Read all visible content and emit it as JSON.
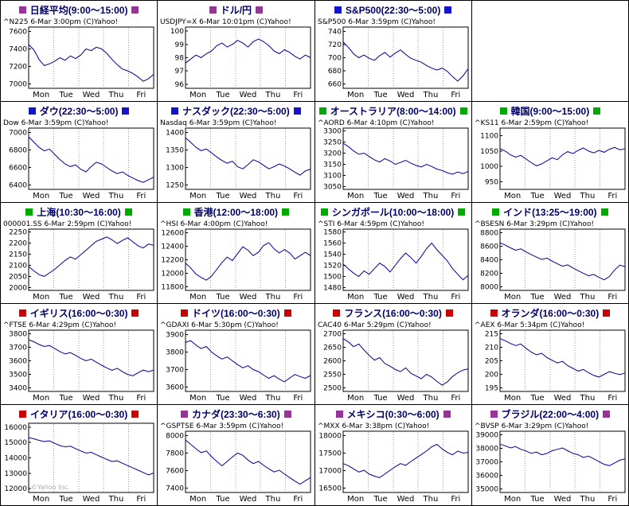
{
  "x_labels": [
    "Mon",
    "Tue",
    "Wed",
    "Thu",
    "Fri"
  ],
  "watermark": "©Yahoo Inc.",
  "colors": {
    "purple": "#993399",
    "blue": "#1414CC",
    "green": "#00AA00",
    "red": "#CC0000",
    "line": "#000099",
    "title": "#000066",
    "grid": "#999999"
  },
  "chart_data": [
    {
      "id": "n225",
      "type": "line",
      "title": "日経平均(9:00〜15:00)",
      "marker": "purple",
      "caption": "^N225 6-Mar 3:00pm (C)Yahoo!",
      "yticks": [
        7000,
        7200,
        7400,
        7600
      ],
      "ylim": [
        6950,
        7650
      ],
      "values": [
        7450,
        7390,
        7280,
        7210,
        7230,
        7260,
        7300,
        7270,
        7320,
        7290,
        7330,
        7400,
        7380,
        7420,
        7400,
        7350,
        7280,
        7220,
        7170,
        7150,
        7120,
        7080,
        7030,
        7060,
        7110
      ]
    },
    {
      "id": "usdjpy",
      "type": "line",
      "title": "ドル/円",
      "marker": "purple",
      "caption": "USDJPY=X 6-Mar 10:01pm (C)Yahoo!",
      "yticks": [
        96,
        97,
        98,
        99,
        100
      ],
      "ylim": [
        95.7,
        100.3
      ],
      "values": [
        97.6,
        97.9,
        98.2,
        98.0,
        98.3,
        98.5,
        98.9,
        99.1,
        98.8,
        99.0,
        99.3,
        99.1,
        98.8,
        99.2,
        99.4,
        99.2,
        98.9,
        98.5,
        98.3,
        98.6,
        98.4,
        98.1,
        97.9,
        98.2,
        98.0
      ]
    },
    {
      "id": "sp500",
      "type": "line",
      "title": "S&P500(22:30〜5:00)",
      "marker": "blue",
      "caption": "S&P500 6-Mar 3:59pm (C)Yahoo!",
      "yticks": [
        660,
        680,
        700,
        720,
        740
      ],
      "ylim": [
        653,
        747
      ],
      "values": [
        724,
        716,
        706,
        700,
        704,
        699,
        696,
        703,
        708,
        701,
        707,
        712,
        705,
        699,
        696,
        693,
        688,
        684,
        681,
        684,
        679,
        671,
        664,
        672,
        683
      ]
    },
    {
      "id": "empty",
      "empty": true
    },
    {
      "id": "dow",
      "type": "line",
      "title": "ダウ(22:30〜5:00)",
      "marker": "blue",
      "caption": "Dow 6-Mar 3:59pm (C)Yahoo!",
      "yticks": [
        6400,
        6600,
        6800,
        7000
      ],
      "ylim": [
        6350,
        7050
      ],
      "values": [
        6950,
        6890,
        6830,
        6790,
        6810,
        6750,
        6690,
        6640,
        6610,
        6630,
        6580,
        6550,
        6610,
        6660,
        6640,
        6600,
        6560,
        6530,
        6550,
        6510,
        6480,
        6450,
        6430,
        6460,
        6490
      ]
    },
    {
      "id": "nasdaq",
      "type": "line",
      "title": "ナスダック(22:30〜5:00)",
      "marker": "blue",
      "caption": "Nasdaq 6-Mar 3:59pm (C)Yahoo!",
      "yticks": [
        1250,
        1300,
        1350,
        1400
      ],
      "ylim": [
        1237,
        1413
      ],
      "values": [
        1385,
        1372,
        1358,
        1348,
        1353,
        1342,
        1330,
        1320,
        1312,
        1318,
        1302,
        1296,
        1308,
        1322,
        1316,
        1306,
        1296,
        1302,
        1310,
        1304,
        1296,
        1286,
        1278,
        1290,
        1295
      ]
    },
    {
      "id": "aord",
      "type": "line",
      "title": "オーストラリア(8:00〜14:00)",
      "marker": "green",
      "caption": "^AORD 6-Mar 4:10pm (C)Yahoo!",
      "yticks": [
        3050,
        3100,
        3150,
        3200,
        3250,
        3300
      ],
      "ylim": [
        3037,
        3313
      ],
      "values": [
        3245,
        3230,
        3210,
        3195,
        3200,
        3185,
        3170,
        3160,
        3175,
        3165,
        3150,
        3158,
        3168,
        3155,
        3145,
        3138,
        3150,
        3140,
        3128,
        3122,
        3112,
        3105,
        3115,
        3108,
        3118
      ]
    },
    {
      "id": "ks11",
      "type": "line",
      "title": "韓国(9:00〜15:00)",
      "marker": "green",
      "caption": "^KS11 6-Mar 2:59pm (C)Yahoo!",
      "yticks": [
        950,
        1000,
        1050,
        1100
      ],
      "ylim": [
        925,
        1125
      ],
      "values": [
        1058,
        1050,
        1038,
        1030,
        1036,
        1024,
        1012,
        1002,
        1008,
        1018,
        1028,
        1022,
        1038,
        1048,
        1042,
        1052,
        1060,
        1050,
        1044,
        1052,
        1046,
        1056,
        1062,
        1054,
        1058
      ]
    },
    {
      "id": "shanghai",
      "type": "line",
      "title": "上海(10:30〜16:00)",
      "marker": "green",
      "caption": "000001.SS 6-Mar 2:59pm (C)Yahoo!",
      "yticks": [
        2000,
        2050,
        2100,
        2150,
        2200,
        2250
      ],
      "ylim": [
        1987,
        2263
      ],
      "values": [
        2095,
        2075,
        2058,
        2050,
        2066,
        2082,
        2102,
        2122,
        2138,
        2128,
        2148,
        2168,
        2188,
        2208,
        2218,
        2228,
        2215,
        2198,
        2212,
        2224,
        2206,
        2188,
        2178,
        2196,
        2190
      ]
    },
    {
      "id": "hsi",
      "type": "line",
      "title": "香港(12:00〜18:00)",
      "marker": "green",
      "caption": "^HSI 6-Mar 4:00pm (C)Yahoo!",
      "yticks": [
        11800,
        12000,
        12200,
        12400,
        12600
      ],
      "ylim": [
        11750,
        12650
      ],
      "values": [
        12150,
        12080,
        11990,
        11940,
        11900,
        11960,
        12060,
        12160,
        12240,
        12190,
        12290,
        12390,
        12340,
        12260,
        12310,
        12410,
        12450,
        12360,
        12300,
        12350,
        12300,
        12210,
        12260,
        12310,
        12260
      ]
    },
    {
      "id": "sti",
      "type": "line",
      "title": "シンガポール(10:00〜18:00)",
      "marker": "green",
      "caption": "^STI 6-Mar 4:59pm (C)Yahoo!",
      "yticks": [
        1480,
        1500,
        1520,
        1540,
        1560,
        1580
      ],
      "ylim": [
        1475,
        1585
      ],
      "values": [
        1522,
        1514,
        1506,
        1500,
        1510,
        1504,
        1514,
        1524,
        1518,
        1508,
        1520,
        1532,
        1542,
        1534,
        1524,
        1536,
        1550,
        1560,
        1548,
        1538,
        1528,
        1514,
        1504,
        1494,
        1502
      ]
    },
    {
      "id": "bsesn",
      "type": "line",
      "title": "インド(13:25〜19:00)",
      "marker": "green",
      "caption": "^BSESN 6-Mar 3:29pm (C)Yahoo!",
      "yticks": [
        8000,
        8200,
        8400,
        8600,
        8800
      ],
      "ylim": [
        7950,
        8850
      ],
      "values": [
        8650,
        8615,
        8575,
        8540,
        8560,
        8515,
        8475,
        8440,
        8405,
        8425,
        8380,
        8340,
        8305,
        8325,
        8280,
        8240,
        8200,
        8165,
        8185,
        8140,
        8105,
        8155,
        8250,
        8320,
        8300
      ]
    },
    {
      "id": "ftse",
      "type": "line",
      "title": "イギリス(16:00〜0:30)",
      "marker": "red",
      "caption": "^FTSE 6-Mar 4:29pm (C)Yahoo!",
      "yticks": [
        3400,
        3500,
        3600,
        3700,
        3800
      ],
      "ylim": [
        3375,
        3825
      ],
      "values": [
        3755,
        3740,
        3720,
        3705,
        3712,
        3690,
        3668,
        3650,
        3660,
        3640,
        3618,
        3600,
        3612,
        3590,
        3568,
        3548,
        3530,
        3545,
        3520,
        3500,
        3490,
        3512,
        3532,
        3520,
        3532
      ]
    },
    {
      "id": "gdaxi",
      "type": "line",
      "title": "ドイツ(16:00〜0:30)",
      "marker": "red",
      "caption": "^GDAXI 6-Mar 5:30pm (C)Yahoo!",
      "yticks": [
        3600,
        3700,
        3800,
        3900
      ],
      "ylim": [
        3575,
        3925
      ],
      "values": [
        3855,
        3865,
        3840,
        3820,
        3832,
        3800,
        3778,
        3760,
        3772,
        3750,
        3728,
        3710,
        3722,
        3700,
        3688,
        3668,
        3650,
        3665,
        3645,
        3630,
        3652,
        3672,
        3660,
        3650,
        3666
      ]
    },
    {
      "id": "cac40",
      "type": "line",
      "title": "フランス(16:00〜0:30)",
      "marker": "red",
      "caption": "CAC40 6-Mar 5:29pm (C)Yahoo!",
      "yticks": [
        2500,
        2550,
        2600,
        2650,
        2700
      ],
      "ylim": [
        2487,
        2713
      ],
      "values": [
        2682,
        2670,
        2652,
        2662,
        2640,
        2620,
        2602,
        2612,
        2590,
        2580,
        2568,
        2560,
        2574,
        2554,
        2544,
        2534,
        2550,
        2540,
        2524,
        2510,
        2522,
        2542,
        2556,
        2566,
        2570
      ]
    },
    {
      "id": "aex",
      "type": "line",
      "title": "オランダ(16:00〜0:30)",
      "marker": "red",
      "caption": "^AEX 6-Mar 5:34pm (C)Yahoo!",
      "yticks": [
        195,
        200,
        205,
        210,
        215
      ],
      "ylim": [
        193.7,
        216.3
      ],
      "values": [
        213.2,
        212.4,
        211.4,
        210.6,
        211.2,
        209.6,
        208.2,
        207.2,
        207.8,
        206.2,
        205.2,
        204.2,
        204.8,
        203.2,
        202.2,
        201.2,
        201.8,
        200.6,
        199.6,
        199.0,
        200.0,
        201.0,
        200.4,
        199.9,
        200.5
      ]
    },
    {
      "id": "italy",
      "type": "line",
      "title": "イタリア(16:00〜0:30)",
      "marker": "red",
      "caption": "",
      "watermark": true,
      "yticks": [
        12000,
        13000,
        14000,
        15000,
        16000
      ],
      "ylim": [
        11750,
        16250
      ],
      "values": [
        15320,
        15240,
        15140,
        15060,
        15110,
        14940,
        14800,
        14710,
        14760,
        14600,
        14450,
        14310,
        14360,
        14200,
        14050,
        13900,
        13760,
        13810,
        13650,
        13500,
        13350,
        13200,
        13050,
        12900,
        13010
      ]
    },
    {
      "id": "gsptse",
      "type": "line",
      "title": "カナダ(23:30〜6:30)",
      "marker": "purple",
      "caption": "^GSPTSE 6-Mar 3:59pm (C)Yahoo!",
      "yticks": [
        7400,
        7600,
        7800,
        8000
      ],
      "ylim": [
        7350,
        8050
      ],
      "values": [
        7950,
        7900,
        7850,
        7805,
        7825,
        7760,
        7705,
        7655,
        7705,
        7755,
        7800,
        7775,
        7720,
        7680,
        7705,
        7660,
        7620,
        7585,
        7605,
        7560,
        7520,
        7480,
        7445,
        7485,
        7520
      ]
    },
    {
      "id": "mxx",
      "type": "line",
      "title": "メキシコ(0:30〜6:00)",
      "marker": "purple",
      "caption": "^MXX 6-Mar 3:38pm (C)Yahoo!",
      "yticks": [
        16500,
        17000,
        17500,
        18000
      ],
      "ylim": [
        16375,
        18125
      ],
      "values": [
        17200,
        17140,
        17050,
        16960,
        17010,
        16900,
        16840,
        16800,
        16900,
        17010,
        17110,
        17200,
        17150,
        17260,
        17360,
        17460,
        17560,
        17680,
        17750,
        17620,
        17520,
        17450,
        17560,
        17500,
        17520
      ]
    },
    {
      "id": "bvsp",
      "type": "line",
      "title": "ブラジル(22:00〜4:00)",
      "marker": "purple",
      "caption": "^BVSP 6-Mar 3:29pm (C)Yahoo!",
      "yticks": [
        35000,
        36000,
        37000,
        38000,
        39000
      ],
      "ylim": [
        34750,
        39250
      ],
      "values": [
        38300,
        38180,
        38020,
        38120,
        37920,
        37800,
        37620,
        37720,
        37520,
        37620,
        37820,
        37920,
        38020,
        37820,
        37620,
        37520,
        37320,
        37420,
        37220,
        37020,
        36820,
        36720,
        36920,
        37120,
        37220
      ]
    }
  ]
}
